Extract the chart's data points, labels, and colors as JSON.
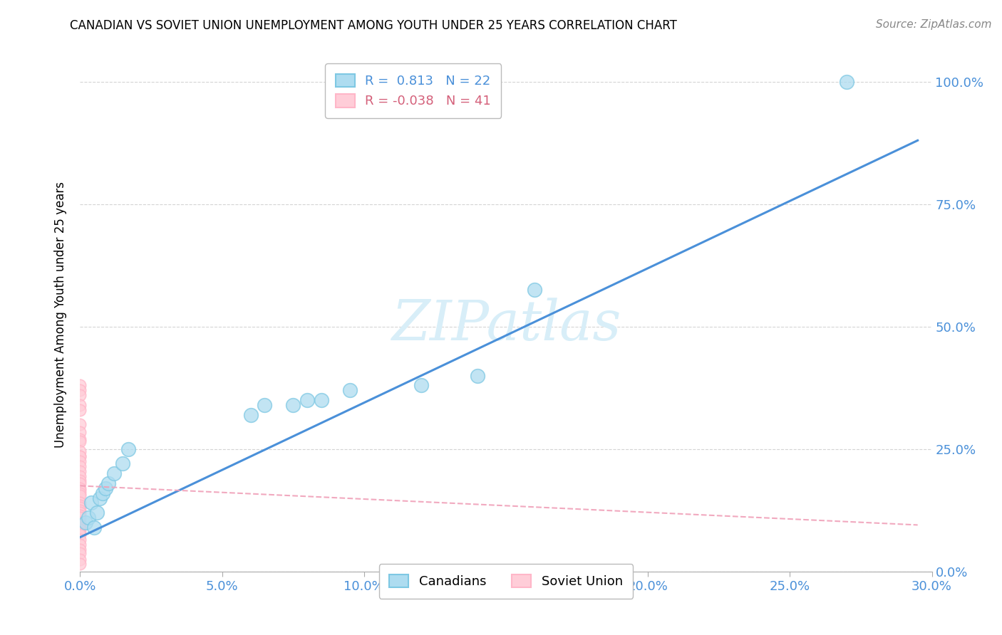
{
  "title": "CANADIAN VS SOVIET UNION UNEMPLOYMENT AMONG YOUTH UNDER 25 YEARS CORRELATION CHART",
  "source": "Source: ZipAtlas.com",
  "ylabel": "Unemployment Among Youth under 25 years",
  "xlim": [
    0.0,
    0.3
  ],
  "ylim": [
    0.0,
    1.05
  ],
  "legend_r_canada": "R =  0.813",
  "legend_n_canada": "N = 22",
  "legend_r_soviet": "R = -0.038",
  "legend_n_soviet": "N = 41",
  "canada_color": "#7ec8e3",
  "soviet_color": "#ffb6c8",
  "canada_fill_color": "#aedcf0",
  "soviet_fill_color": "#ffcdd8",
  "canada_line_color": "#4a90d9",
  "soviet_line_color": "#f0a0b8",
  "background_color": "#ffffff",
  "grid_color": "#d0d0d0",
  "canadians_x": [
    0.002,
    0.003,
    0.004,
    0.005,
    0.006,
    0.007,
    0.008,
    0.009,
    0.01,
    0.012,
    0.015,
    0.017,
    0.06,
    0.065,
    0.075,
    0.08,
    0.085,
    0.095,
    0.12,
    0.14,
    0.16,
    0.27
  ],
  "canadians_y": [
    0.1,
    0.11,
    0.14,
    0.09,
    0.12,
    0.15,
    0.16,
    0.17,
    0.18,
    0.2,
    0.22,
    0.25,
    0.32,
    0.34,
    0.34,
    0.35,
    0.35,
    0.37,
    0.38,
    0.4,
    0.575,
    1.0
  ],
  "soviet_x": [
    0.0,
    0.0,
    0.0,
    0.0,
    0.0,
    0.0,
    0.0,
    0.0,
    0.0,
    0.0,
    0.0,
    0.0,
    0.0,
    0.0,
    0.0,
    0.0,
    0.0,
    0.0,
    0.0,
    0.0,
    0.0,
    0.0,
    0.0,
    0.0,
    0.0,
    0.0,
    0.0,
    0.0,
    0.0,
    0.0,
    0.0,
    0.0,
    0.0,
    0.0,
    0.0,
    0.0,
    0.0,
    0.0,
    0.0,
    0.0,
    0.0
  ],
  "soviet_y": [
    0.38,
    0.37,
    0.36,
    0.34,
    0.33,
    0.3,
    0.285,
    0.27,
    0.265,
    0.245,
    0.235,
    0.235,
    0.225,
    0.215,
    0.205,
    0.195,
    0.185,
    0.18,
    0.17,
    0.165,
    0.16,
    0.155,
    0.14,
    0.135,
    0.13,
    0.125,
    0.12,
    0.115,
    0.11,
    0.1,
    0.095,
    0.09,
    0.085,
    0.08,
    0.075,
    0.065,
    0.055,
    0.045,
    0.038,
    0.025,
    0.015
  ],
  "soviet_line_x0": 0.0,
  "soviet_line_x1": 0.295,
  "soviet_line_y0": 0.175,
  "soviet_line_y1": 0.095,
  "canada_line_x0": 0.0,
  "canada_line_x1": 0.295,
  "canada_line_y0": 0.07,
  "canada_line_y1": 0.88
}
